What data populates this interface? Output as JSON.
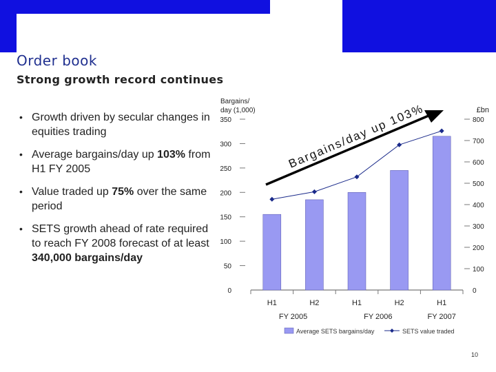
{
  "slide": {
    "title": "Order book",
    "subtitle": "Strong growth record continues",
    "page_number": "10",
    "colors": {
      "banner": "#1010e0",
      "title": "#1f2f8f",
      "bar": "#9999f2",
      "line": "#1a2a8a"
    }
  },
  "bullets": [
    {
      "text": "Growth driven by secular changes in equities trading"
    },
    {
      "pre": "Average bargains/day up ",
      "bold": "103%",
      "post": " from H1 FY 2005"
    },
    {
      "pre": "Value traded up ",
      "bold": "75%",
      "post": " over the same period"
    },
    {
      "pre": "SETS growth ahead of rate required to reach FY 2008 forecast of at least ",
      "bold": "340,000 bargains/day",
      "post": ""
    }
  ],
  "chart_data": {
    "type": "bar",
    "categories": [
      "H1",
      "H2",
      "H1",
      "H2",
      "H1"
    ],
    "group_labels": [
      "FY 2005",
      "FY 2006",
      "FY 2007"
    ],
    "series": [
      {
        "name": "Average SETS bargains/day",
        "type": "bar",
        "axis": "left",
        "values": [
          155,
          185,
          200,
          245,
          315
        ]
      },
      {
        "name": "SETS value traded",
        "type": "line",
        "axis": "right",
        "values": [
          425,
          460,
          530,
          680,
          745
        ]
      }
    ],
    "y_left": {
      "label": "Bargains/ day (1,000)",
      "min": 0,
      "max": 350,
      "ticks": [
        0,
        50,
        100,
        150,
        200,
        250,
        300,
        350
      ]
    },
    "y_right": {
      "label": "£bn",
      "min": 0,
      "max": 800,
      "ticks": [
        0,
        100,
        200,
        300,
        400,
        500,
        600,
        700,
        800
      ]
    },
    "annotation": "Bargains/day up 103%",
    "legend": "bottom"
  }
}
